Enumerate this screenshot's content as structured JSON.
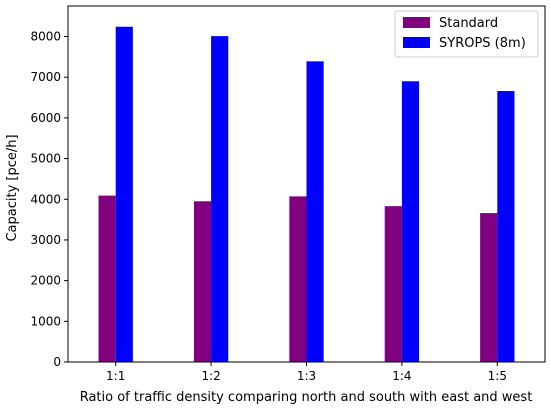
{
  "chart_data": {
    "type": "bar",
    "xlabel": "Ratio of traffic density comparing north and south with east and west",
    "ylabel": "Capacity [pce/h]",
    "categories": [
      "1:1",
      "1:2",
      "1:3",
      "1:4",
      "1:5"
    ],
    "series": [
      {
        "name": "Standard",
        "values": [
          4090,
          3950,
          4070,
          3830,
          3660
        ],
        "color": "#800080"
      },
      {
        "name": "SYROPS (8m)",
        "values": [
          8240,
          8010,
          7390,
          6900,
          6660
        ],
        "color": "#0000ff"
      }
    ],
    "ylim": [
      0,
      8750
    ],
    "yticks": [
      0,
      1000,
      2000,
      3000,
      4000,
      5000,
      6000,
      7000,
      8000
    ],
    "grid": false,
    "legend": "top-right"
  }
}
